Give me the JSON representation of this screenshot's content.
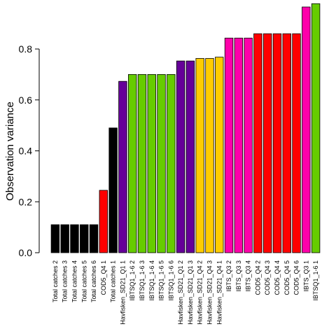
{
  "chart_data": {
    "type": "bar",
    "title": "",
    "xlabel": "",
    "ylabel": "Observation variance",
    "ylim": [
      0,
      0.98
    ],
    "yticks": [
      0.0,
      0.2,
      0.4,
      0.6,
      0.8
    ],
    "ytick_labels": [
      "0.0",
      "0.2",
      "0.4",
      "0.6",
      "0.8"
    ],
    "grid": false,
    "legend": "none",
    "categories": [
      "Total catches 2",
      "Total catches 3",
      "Total catches 4",
      "Total catches 5",
      "Total catches 6",
      "COD5_Q4 1",
      "Total catches 1",
      "Havfisken_SD21_Q1 1",
      "IBTSQ1_1-6 2",
      "IBTSQ1_1-6 3",
      "IBTSQ1_1-6 4",
      "IBTSQ1_1-6 5",
      "IBTSQ1_1-6 6",
      "Havfisken_SD21_Q1 2",
      "Havfisken_SD21_Q1 3",
      "Havfisken_SD21_Q4 2",
      "Havfisken_SD21_Q4 3",
      "Havfisken_SD21_Q4 1",
      "IBTS_Q3 2",
      "IBTS_Q3 3",
      "IBTS_Q3 4",
      "COD5_Q4 2",
      "COD5_Q4 3",
      "COD5_Q4 4",
      "COD5_Q4 5",
      "COD5_Q4 6",
      "IBTS_Q3 1",
      "IBTSQ1_1-6 1"
    ],
    "values": [
      0.11,
      0.11,
      0.11,
      0.11,
      0.11,
      0.245,
      0.49,
      0.673,
      0.7,
      0.7,
      0.7,
      0.7,
      0.7,
      0.753,
      0.753,
      0.763,
      0.763,
      0.768,
      0.843,
      0.843,
      0.843,
      0.86,
      0.86,
      0.86,
      0.86,
      0.86,
      0.965,
      0.978
    ],
    "colors": [
      "#000000",
      "#000000",
      "#000000",
      "#000000",
      "#000000",
      "#ff0000",
      "#000000",
      "#660099",
      "#66cc00",
      "#66cc00",
      "#66cc00",
      "#66cc00",
      "#66cc00",
      "#660099",
      "#660099",
      "#ffcc00",
      "#ffcc00",
      "#ffcc00",
      "#ff00aa",
      "#ff00aa",
      "#ff00aa",
      "#ff0000",
      "#ff0000",
      "#ff0000",
      "#ff0000",
      "#ff0000",
      "#ff00aa",
      "#66cc00"
    ]
  }
}
